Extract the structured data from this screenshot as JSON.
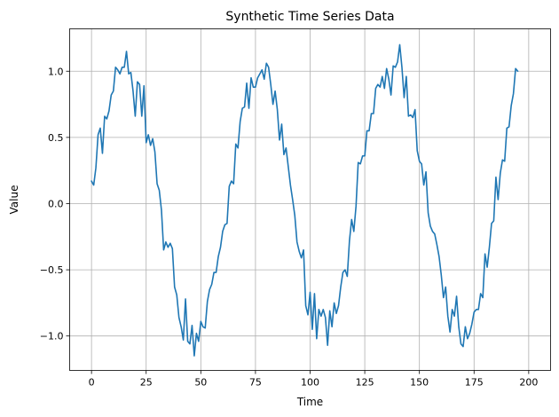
{
  "chart_data": {
    "type": "line",
    "title": "Synthetic Time Series Data",
    "xlabel": "Time",
    "ylabel": "Value",
    "xlim": [
      -10,
      210
    ],
    "ylim": [
      -1.26,
      1.32
    ],
    "xticks": [
      0,
      25,
      50,
      75,
      100,
      125,
      150,
      175,
      200
    ],
    "yticks": [
      -1.0,
      -0.5,
      0.0,
      0.5,
      1.0
    ],
    "xtick_labels": [
      "0",
      "25",
      "50",
      "75",
      "100",
      "125",
      "150",
      "175",
      "200"
    ],
    "ytick_labels": [
      "−1.0",
      "−0.5",
      "0.0",
      "0.5",
      "1.0"
    ],
    "grid": true,
    "series": [
      {
        "color": "#1f77b4",
        "values": [
          0.17,
          0.14,
          0.27,
          0.52,
          0.57,
          0.38,
          0.66,
          0.64,
          0.7,
          0.82,
          0.85,
          1.03,
          1.01,
          0.98,
          1.03,
          1.03,
          1.15,
          0.98,
          0.99,
          0.85,
          0.66,
          0.92,
          0.9,
          0.66,
          0.89,
          0.46,
          0.52,
          0.44,
          0.49,
          0.39,
          0.15,
          0.1,
          -0.05,
          -0.35,
          -0.29,
          -0.33,
          -0.3,
          -0.34,
          -0.63,
          -0.69,
          -0.86,
          -0.93,
          -1.03,
          -0.72,
          -1.04,
          -1.06,
          -0.92,
          -1.15,
          -0.98,
          -1.04,
          -0.89,
          -0.93,
          -0.94,
          -0.74,
          -0.65,
          -0.61,
          -0.52,
          -0.52,
          -0.4,
          -0.33,
          -0.21,
          -0.16,
          -0.15,
          0.13,
          0.17,
          0.15,
          0.45,
          0.42,
          0.62,
          0.72,
          0.73,
          0.91,
          0.72,
          0.95,
          0.88,
          0.88,
          0.95,
          0.98,
          1.01,
          0.94,
          1.06,
          1.03,
          0.9,
          0.75,
          0.85,
          0.71,
          0.48,
          0.6,
          0.37,
          0.42,
          0.28,
          0.14,
          0.03,
          -0.09,
          -0.29,
          -0.36,
          -0.41,
          -0.35,
          -0.77,
          -0.84,
          -0.67,
          -0.95,
          -0.68,
          -1.02,
          -0.8,
          -0.85,
          -0.8,
          -0.86,
          -1.07,
          -0.81,
          -0.93,
          -0.75,
          -0.83,
          -0.77,
          -0.63,
          -0.52,
          -0.5,
          -0.55,
          -0.28,
          -0.12,
          -0.21,
          -0.02,
          0.31,
          0.3,
          0.36,
          0.36,
          0.55,
          0.55,
          0.68,
          0.68,
          0.87,
          0.9,
          0.88,
          0.96,
          0.87,
          1.02,
          0.94,
          0.82,
          1.04,
          1.03,
          1.07,
          1.2,
          1.03,
          0.8,
          0.96,
          0.66,
          0.67,
          0.65,
          0.71,
          0.4,
          0.32,
          0.3,
          0.14,
          0.24,
          -0.07,
          -0.17,
          -0.21,
          -0.23,
          -0.31,
          -0.4,
          -0.54,
          -0.71,
          -0.63,
          -0.85,
          -0.97,
          -0.8,
          -0.85,
          -0.7,
          -0.93,
          -1.06,
          -1.08,
          -0.93,
          -1.02,
          -0.98,
          -0.91,
          -0.82,
          -0.8,
          -0.8,
          -0.68,
          -0.71,
          -0.38,
          -0.48,
          -0.33,
          -0.15,
          -0.13,
          0.2,
          0.03,
          0.23,
          0.33,
          0.32,
          0.57,
          0.58,
          0.74,
          0.83,
          1.02,
          1.0
        ]
      }
    ]
  }
}
